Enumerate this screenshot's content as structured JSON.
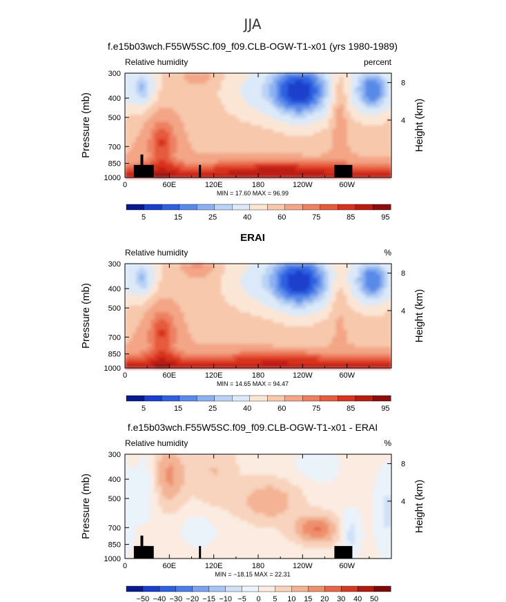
{
  "page": {
    "title": "JJA"
  },
  "colors": {
    "rh_scale": [
      "#0a1a8c",
      "#1a3fcc",
      "#2f60e0",
      "#5a8ae8",
      "#8cb0f0",
      "#b9d2f5",
      "#dce9f8",
      "#fbe6d6",
      "#f7c8ac",
      "#f3a586",
      "#ee8062",
      "#e65a3e",
      "#d8331f",
      "#bb1c12",
      "#8c0d0c"
    ],
    "diff_scale": [
      "#0a1a8c",
      "#1a3fcc",
      "#2f60e0",
      "#4c7ee8",
      "#7ba2ee",
      "#a8c5f3",
      "#cfe0f7",
      "#eaf2fa",
      "#fbebe0",
      "#f8d3bd",
      "#f3b394",
      "#ee8f6c",
      "#e46746",
      "#d23a22",
      "#b01b10",
      "#7d0a0a"
    ],
    "land": "#000000"
  },
  "chart_data": [
    {
      "type": "heatmap",
      "title": "f.e15b03wch.F55W5SC.f09_f09.CLB-OGW-T1-x01 (yrs 1980-1989)",
      "left_label": "Relative humidity",
      "right_label": "percent",
      "ylabel": "Pressure (mb)",
      "y2label": "Height (km)",
      "x_ticks": [
        "0",
        "60E",
        "120E",
        "180",
        "120W",
        "60W"
      ],
      "y_ticks": [
        "300",
        "400",
        "500",
        "700",
        "850",
        "1000"
      ],
      "y2_ticks": [
        "8",
        "4"
      ],
      "stats": "MIN =   17.60   MAX =   96.99",
      "colorbar_labels": [
        "5",
        "15",
        "25",
        "40",
        "60",
        "75",
        "85",
        "95"
      ],
      "xlim": [
        0,
        360
      ],
      "ylim": [
        1000,
        300
      ],
      "y_scale": "log",
      "min": 17.6,
      "max": 96.99
    },
    {
      "type": "heatmap",
      "title": "ERAI",
      "left_label": "Relative humidity",
      "right_label": "%",
      "ylabel": "Pressure (mb)",
      "y2label": "Height (km)",
      "x_ticks": [
        "0",
        "60E",
        "120E",
        "180",
        "120W",
        "60W"
      ],
      "y_ticks": [
        "300",
        "400",
        "500",
        "700",
        "850",
        "1000"
      ],
      "y2_ticks": [
        "8",
        "4"
      ],
      "stats": "MIN =   14.65   MAX =   94.47",
      "colorbar_labels": [
        "5",
        "15",
        "25",
        "40",
        "60",
        "75",
        "85",
        "95"
      ],
      "xlim": [
        0,
        360
      ],
      "ylim": [
        1000,
        300
      ],
      "y_scale": "log",
      "min": 14.65,
      "max": 94.47
    },
    {
      "type": "heatmap",
      "title": "f.e15b03wch.F55W5SC.f09_f09.CLB-OGW-T1-x01 - ERAI",
      "left_label": "Relative humidity",
      "right_label": "%",
      "ylabel": "Pressure (mb)",
      "y2label": "Height (km)",
      "x_ticks": [
        "0",
        "60E",
        "120E",
        "180",
        "120W",
        "60W"
      ],
      "y_ticks": [
        "300",
        "400",
        "500",
        "700",
        "850",
        "1000"
      ],
      "y2_ticks": [
        "8",
        "4"
      ],
      "stats": "MIN =  −18.15   MAX =   22.31",
      "colorbar_labels": [
        "−50",
        "−40",
        "−30",
        "−20",
        "−15",
        "−10",
        "−5",
        "0",
        "5",
        "10",
        "15",
        "20",
        "30",
        "40",
        "50"
      ],
      "xlim": [
        0,
        360
      ],
      "ylim": [
        1000,
        300
      ],
      "y_scale": "log",
      "min": -18.15,
      "max": 22.31
    }
  ]
}
